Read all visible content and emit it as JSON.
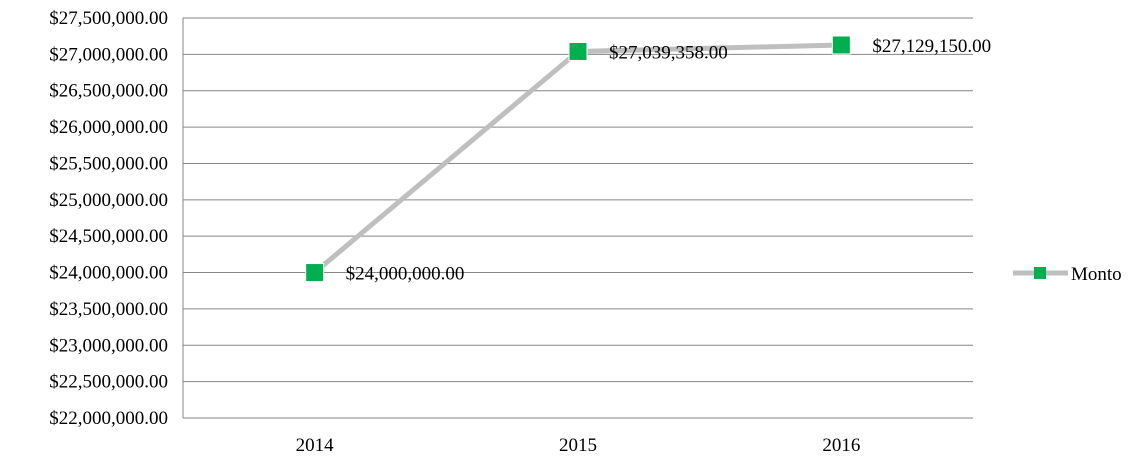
{
  "chart_data": {
    "type": "line",
    "categories": [
      "2014",
      "2015",
      "2016"
    ],
    "series": [
      {
        "name": "Monto",
        "values": [
          24000000,
          27039358,
          27129150
        ],
        "labels": [
          "$24,000,000.00",
          "$27,039,358.00",
          "$27,129,150.00"
        ]
      }
    ],
    "title": "",
    "xlabel": "",
    "ylabel": "",
    "ylim": [
      22000000,
      27500000
    ],
    "y_step": 500000,
    "y_ticks": [
      "$22,000,000.00",
      "$22,500,000.00",
      "$23,000,000.00",
      "$23,500,000.00",
      "$24,000,000.00",
      "$24,500,000.00",
      "$25,000,000.00",
      "$25,500,000.00",
      "$26,000,000.00",
      "$26,500,000.00",
      "$27,000,000.00",
      "$27,500,000.00"
    ],
    "grid": true,
    "legend_position": "right",
    "colors": {
      "line": "#bfbfbf",
      "marker": "#00b050",
      "grid": "#868686",
      "axis": "#868686"
    }
  }
}
